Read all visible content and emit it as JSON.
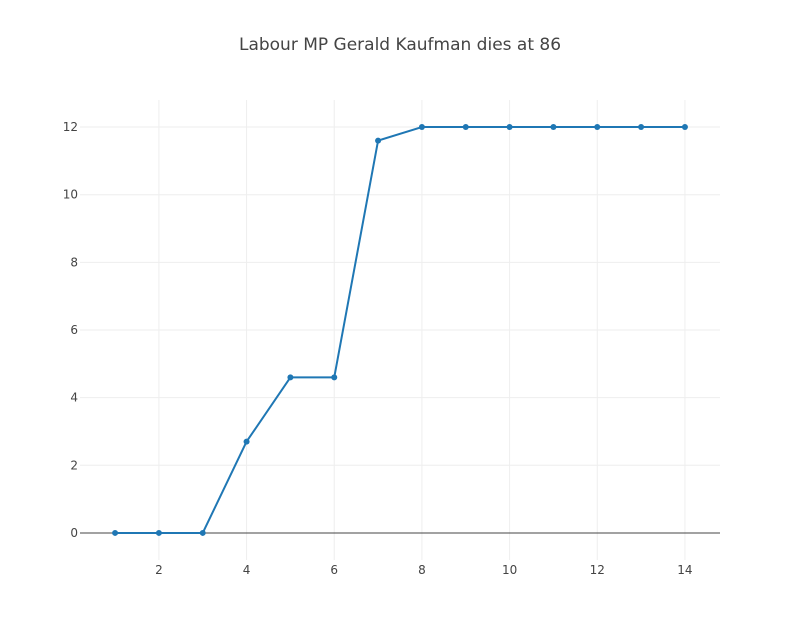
{
  "chart_data": {
    "type": "line",
    "title": "Labour MP Gerald Kaufman dies at 86",
    "xlabel": "",
    "ylabel": "",
    "x": [
      1,
      2,
      3,
      4,
      5,
      6,
      7,
      8,
      9,
      10,
      11,
      12,
      13,
      14
    ],
    "series": [
      {
        "values": [
          0,
          0,
          0,
          2.7,
          4.6,
          4.6,
          11.6,
          12,
          12,
          12,
          12,
          12,
          12,
          12
        ]
      }
    ],
    "xlim": [
      0.2,
      14.8
    ],
    "ylim": [
      -0.8,
      12.8
    ],
    "x_ticks": [
      2,
      4,
      6,
      8,
      10,
      12,
      14
    ],
    "y_ticks": [
      0,
      2,
      4,
      6,
      8,
      10,
      12
    ],
    "grid": true,
    "line_color": "#1f77b4",
    "markers": true
  }
}
